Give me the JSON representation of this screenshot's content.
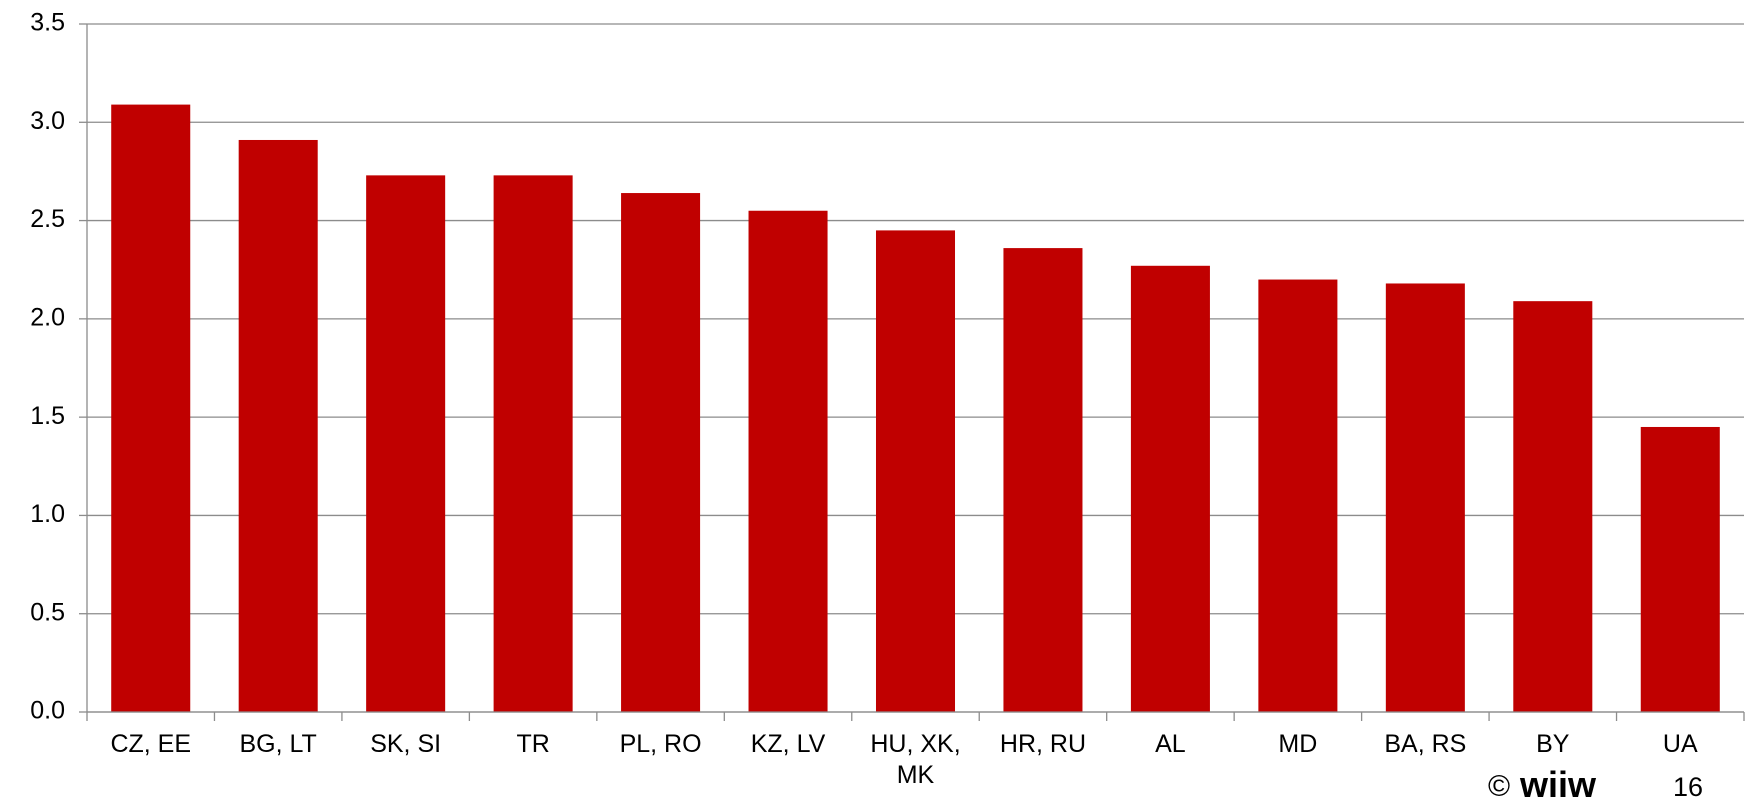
{
  "chart_data": {
    "type": "bar",
    "categories": [
      "CZ, EE",
      "BG, LT",
      "SK, SI",
      "TR",
      "PL, RO",
      "KZ, LV",
      "HU, XK, MK",
      "HR, RU",
      "AL",
      "MD",
      "BA, RS",
      "BY",
      "UA"
    ],
    "values": [
      3.09,
      2.91,
      2.73,
      2.73,
      2.64,
      2.55,
      2.45,
      2.36,
      2.27,
      2.2,
      2.18,
      2.09,
      1.45
    ],
    "color": "#c00000",
    "ylim": [
      0,
      3.5
    ],
    "yticks": [
      {
        "value": 0,
        "label": "0.0"
      },
      0.5,
      {
        "value": 1,
        "label": "1.0"
      },
      1.5,
      {
        "value": 2,
        "label": "2.0"
      },
      2.5,
      {
        "value": 3,
        "label": "3.0"
      },
      3.5
    ],
    "grid": true
  },
  "footer": {
    "copyright": "©",
    "logo": "wiiw",
    "page_number": "16"
  }
}
